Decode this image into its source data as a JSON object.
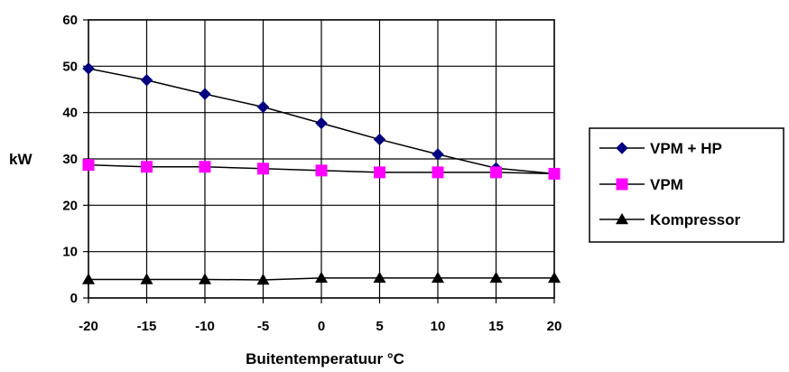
{
  "chart_data": {
    "type": "line",
    "title": "",
    "xlabel": "Buitentemperatuur °C",
    "ylabel": "kW",
    "x": [
      -20,
      -15,
      -10,
      -5,
      0,
      5,
      10,
      15,
      20
    ],
    "xticks": [
      "-20",
      "-15",
      "-10",
      "-5",
      "0",
      "5",
      "10",
      "15",
      "20"
    ],
    "yticks": [
      "0",
      "10",
      "20",
      "30",
      "40",
      "50",
      "60"
    ],
    "ylim": [
      0,
      60
    ],
    "grid": true,
    "legend_position": "right",
    "series": [
      {
        "name": "VPM + HP",
        "marker": "diamond",
        "color": "#000080",
        "line_color": "#000000",
        "values": [
          49.5,
          47,
          44,
          41.2,
          37.7,
          34.2,
          31,
          28,
          26.8
        ]
      },
      {
        "name": "VPM",
        "marker": "square",
        "color": "#ff00ff",
        "line_color": "#000000",
        "values": [
          28.7,
          28.3,
          28.3,
          27.9,
          27.5,
          27.1,
          27.1,
          27.1,
          26.8
        ]
      },
      {
        "name": "Kompressor",
        "marker": "triangle",
        "color": "#000000",
        "line_color": "#000000",
        "values": [
          4,
          4,
          4,
          3.9,
          4.3,
          4.3,
          4.3,
          4.3,
          4.3
        ]
      }
    ]
  }
}
